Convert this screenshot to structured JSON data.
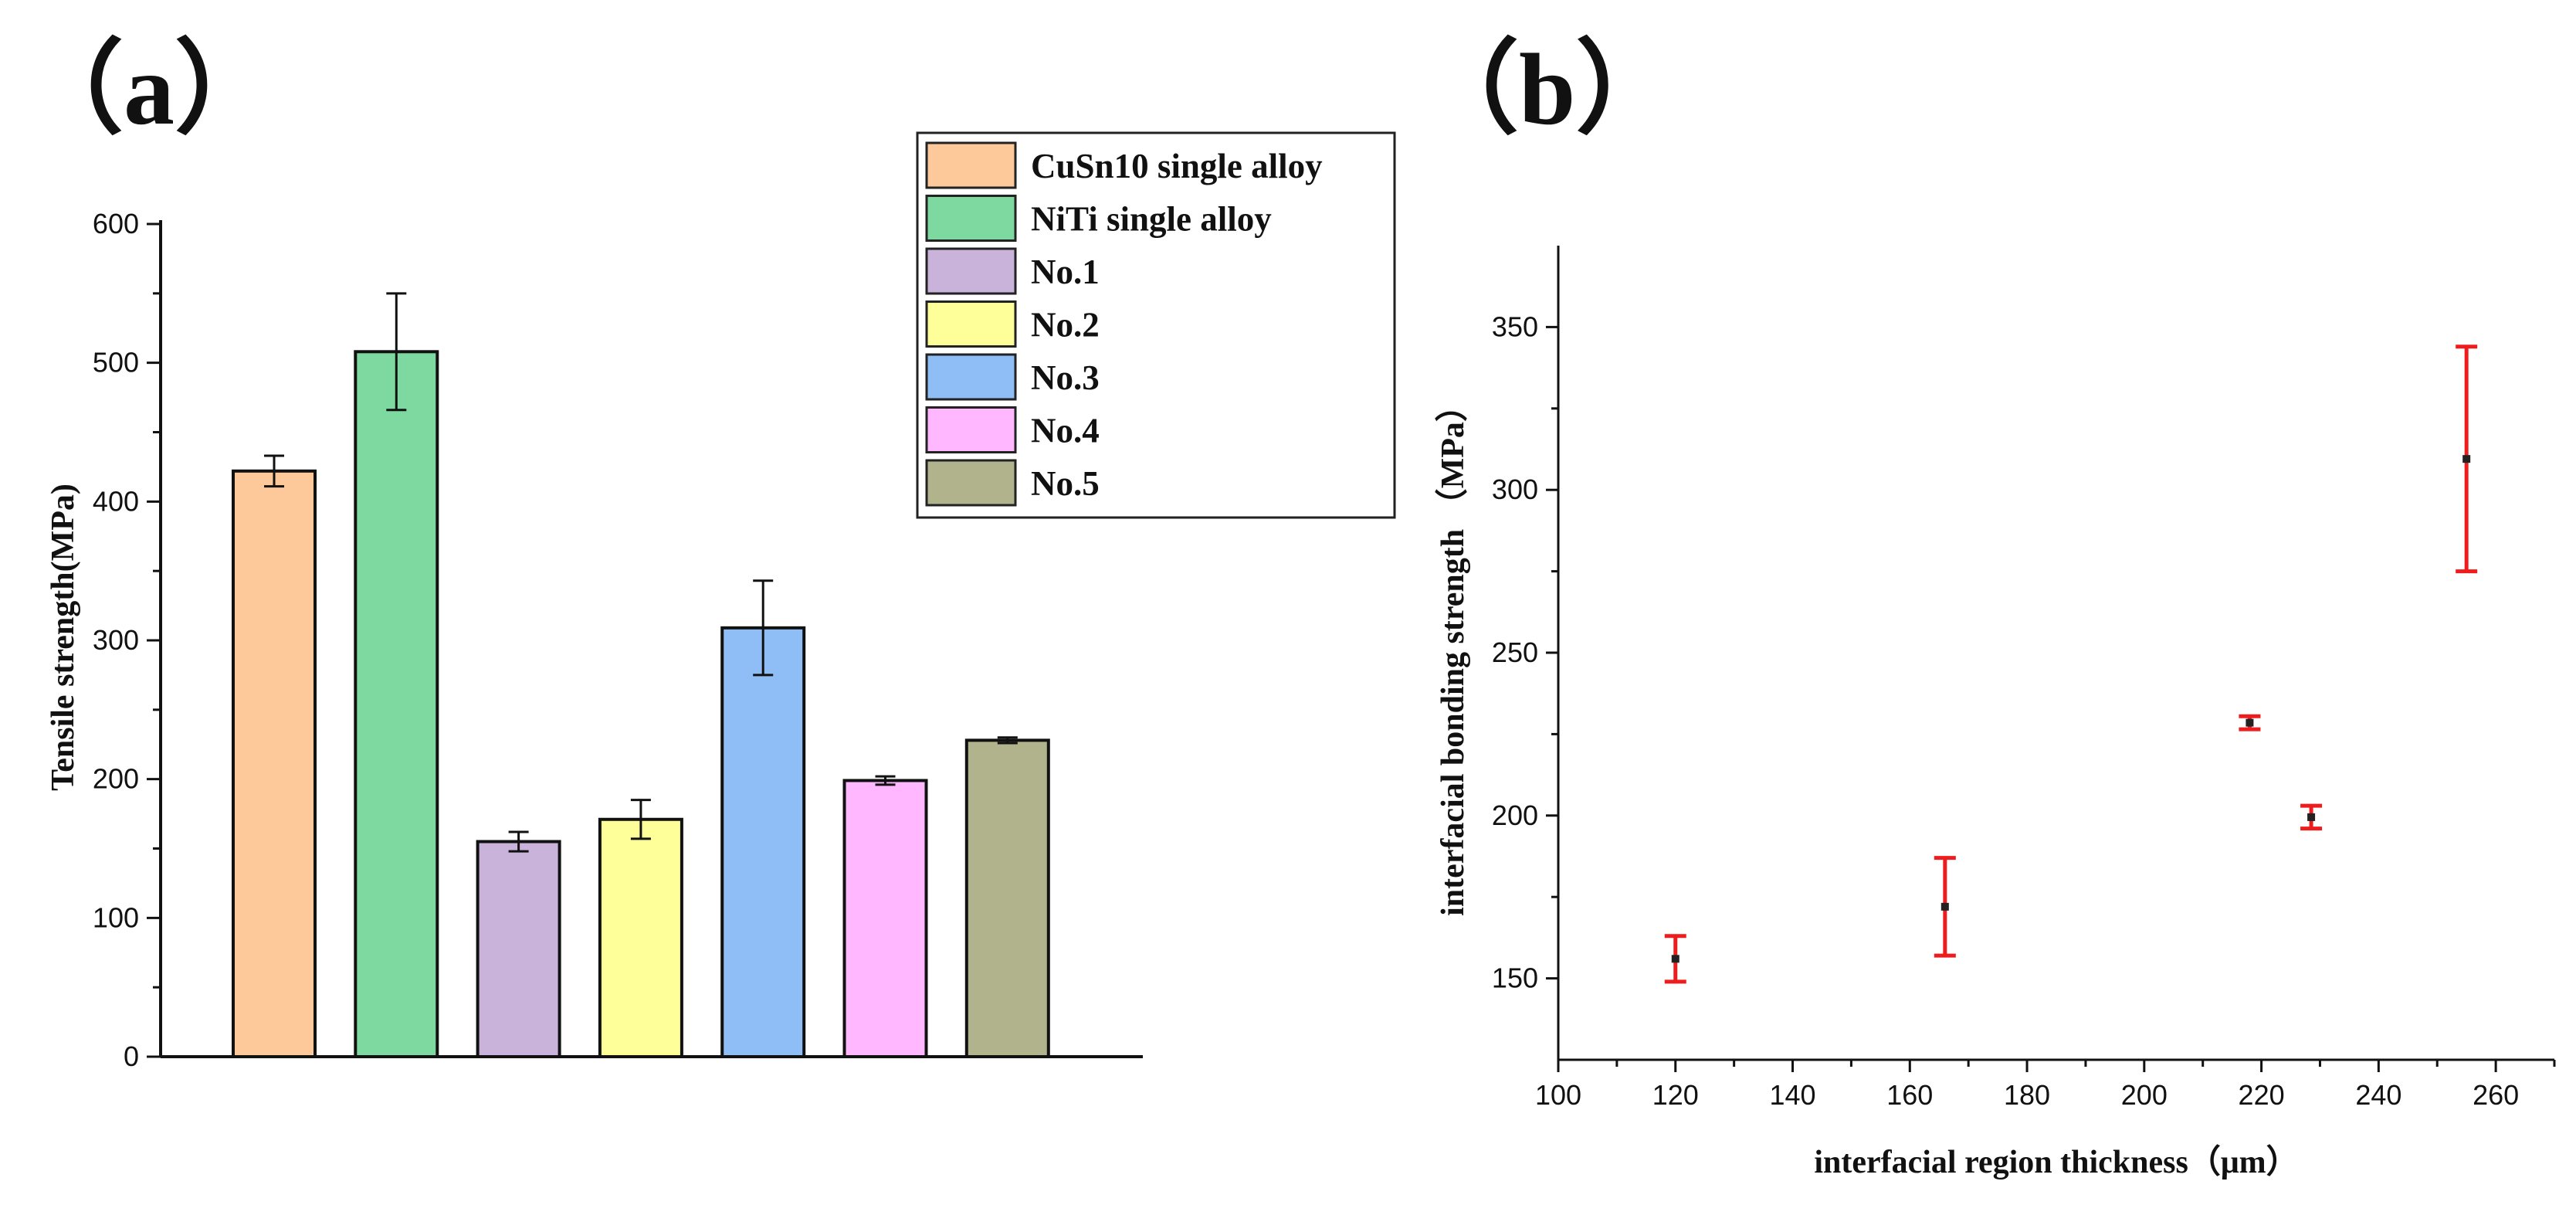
{
  "chart_data": [
    {
      "type": "bar",
      "panel_label": "（a）",
      "ylabel": "Tensile strength(MPa)",
      "xlabel": "",
      "ylim": [
        0,
        600
      ],
      "yticks": [
        0,
        100,
        200,
        300,
        400,
        500,
        600
      ],
      "yticks_text": [
        "0",
        "100",
        "200",
        "300",
        "400",
        "500",
        "600"
      ],
      "categories": [
        "CuSn10 single alloy",
        "NiTi single alloy",
        "No.1",
        "No.2",
        "No.3",
        "No.4",
        "No.5"
      ],
      "values": [
        422,
        508,
        155,
        171,
        309,
        199,
        228
      ],
      "errors": [
        11,
        42,
        7,
        14,
        34,
        3,
        2
      ],
      "colors": [
        "#fdc89a",
        "#7ed9a0",
        "#c9b3da",
        "#ffff99",
        "#8fbdf5",
        "#ffb7ff",
        "#b0b38c"
      ],
      "legend_placement": "top-right"
    },
    {
      "type": "scatter",
      "panel_label": "（b）",
      "xlabel": "interfacial region thickness（μm）",
      "ylabel": "interfacial bonding strength （MPa）",
      "xlim": [
        100,
        270
      ],
      "ylim": [
        125,
        375
      ],
      "xticks": [
        100,
        120,
        140,
        160,
        180,
        200,
        220,
        240,
        260
      ],
      "xticks_text": [
        "100",
        "120",
        "140",
        "160",
        "180",
        "200",
        "220",
        "240",
        "260"
      ],
      "yticks": [
        150,
        200,
        250,
        300,
        350
      ],
      "yticks_text": [
        "150",
        "200",
        "250",
        "300",
        "350"
      ],
      "x": [
        120,
        166,
        218,
        228.5,
        255
      ],
      "y": [
        156,
        172,
        228.5,
        199.5,
        309.5
      ],
      "errors": [
        7,
        15,
        2,
        3.5,
        34.5
      ],
      "point_color": "#222222",
      "errorbar_color": "#ee1c1c"
    }
  ]
}
